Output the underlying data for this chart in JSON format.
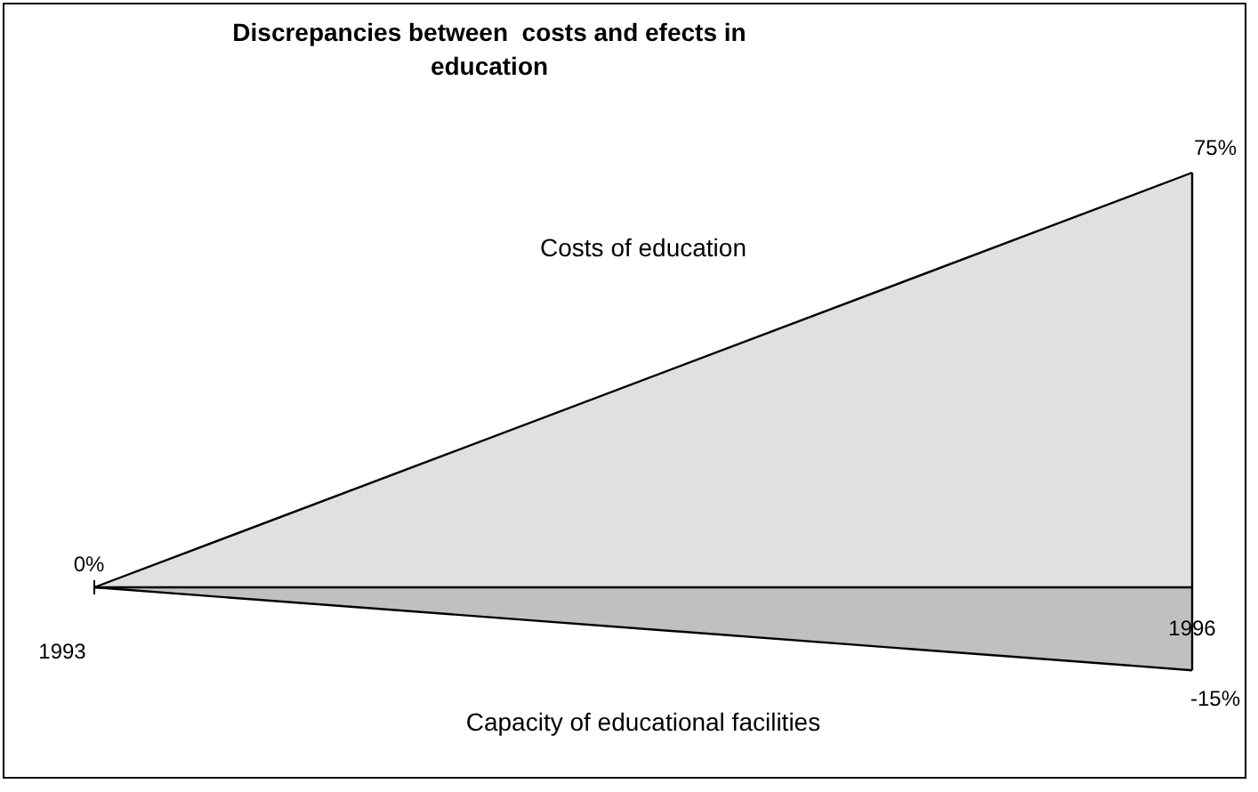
{
  "chart_data": {
    "type": "area",
    "title": "Discrepancies between  costs and efects in education",
    "categories": [
      "1993",
      "1996"
    ],
    "series": [
      {
        "name": "Costs of education",
        "color": "#e0e0e0",
        "values": [
          0,
          75
        ],
        "value_labels": [
          "0%",
          "75%"
        ]
      },
      {
        "name": "Capacity of educational facilities",
        "color": "#c0c0c0",
        "values": [
          0,
          -15
        ],
        "value_labels": [
          null,
          "-15%"
        ]
      }
    ]
  }
}
